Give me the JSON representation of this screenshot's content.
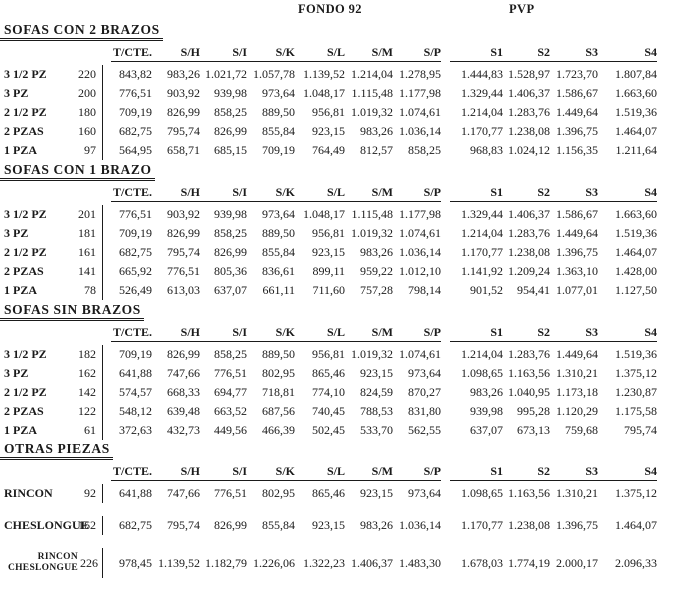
{
  "header": {
    "fondo_label": "FONDO 92",
    "pvp_label": "PVP"
  },
  "columns": [
    "T/CTE.",
    "S/H",
    "S/I",
    "S/K",
    "S/L",
    "S/M",
    "S/P",
    "S1",
    "S2",
    "S3",
    "S4"
  ],
  "sections": [
    {
      "title": "SOFAS CON 2 BRAZOS",
      "rows": [
        {
          "label": "3 1/2 PZ",
          "qty": "220",
          "values": [
            "843,82",
            "983,26",
            "1.021,72",
            "1.057,78",
            "1.139,52",
            "1.214,04",
            "1.278,95",
            "1.444,83",
            "1.528,97",
            "1.723,70",
            "1.807,84"
          ]
        },
        {
          "label": "3 PZ",
          "qty": "200",
          "values": [
            "776,51",
            "903,92",
            "939,98",
            "973,64",
            "1.048,17",
            "1.115,48",
            "1.177,98",
            "1.329,44",
            "1.406,37",
            "1.586,67",
            "1.663,60"
          ]
        },
        {
          "label": "2 1/2 PZ",
          "qty": "180",
          "values": [
            "709,19",
            "826,99",
            "858,25",
            "889,50",
            "956,81",
            "1.019,32",
            "1.074,61",
            "1.214,04",
            "1.283,76",
            "1.449,64",
            "1.519,36"
          ]
        },
        {
          "label": "2 PZAS",
          "qty": "160",
          "values": [
            "682,75",
            "795,74",
            "826,99",
            "855,84",
            "923,15",
            "983,26",
            "1.036,14",
            "1.170,77",
            "1.238,08",
            "1.396,75",
            "1.464,07"
          ]
        },
        {
          "label": "1 PZA",
          "qty": "97",
          "values": [
            "564,95",
            "658,71",
            "685,15",
            "709,19",
            "764,49",
            "812,57",
            "858,25",
            "968,83",
            "1.024,12",
            "1.156,35",
            "1.211,64"
          ]
        }
      ]
    },
    {
      "title": "SOFAS CON 1 BRAZO",
      "rows": [
        {
          "label": "3 1/2 PZ",
          "qty": "201",
          "values": [
            "776,51",
            "903,92",
            "939,98",
            "973,64",
            "1.048,17",
            "1.115,48",
            "1.177,98",
            "1.329,44",
            "1.406,37",
            "1.586,67",
            "1.663,60"
          ]
        },
        {
          "label": "3 PZ",
          "qty": "181",
          "values": [
            "709,19",
            "826,99",
            "858,25",
            "889,50",
            "956,81",
            "1.019,32",
            "1.074,61",
            "1.214,04",
            "1.283,76",
            "1.449,64",
            "1.519,36"
          ]
        },
        {
          "label": "2 1/2 PZ",
          "qty": "161",
          "values": [
            "682,75",
            "795,74",
            "826,99",
            "855,84",
            "923,15",
            "983,26",
            "1.036,14",
            "1.170,77",
            "1.238,08",
            "1.396,75",
            "1.464,07"
          ]
        },
        {
          "label": "2 PZAS",
          "qty": "141",
          "values": [
            "665,92",
            "776,51",
            "805,36",
            "836,61",
            "899,11",
            "959,22",
            "1.012,10",
            "1.141,92",
            "1.209,24",
            "1.363,10",
            "1.428,00"
          ]
        },
        {
          "label": "1 PZA",
          "qty": "78",
          "values": [
            "526,49",
            "613,03",
            "637,07",
            "661,11",
            "711,60",
            "757,28",
            "798,14",
            "901,52",
            "954,41",
            "1.077,01",
            "1.127,50"
          ]
        }
      ]
    },
    {
      "title": "SOFAS SIN BRAZOS",
      "rows": [
        {
          "label": "3 1/2 PZ",
          "qty": "182",
          "values": [
            "709,19",
            "826,99",
            "858,25",
            "889,50",
            "956,81",
            "1.019,32",
            "1.074,61",
            "1.214,04",
            "1.283,76",
            "1.449,64",
            "1.519,36"
          ]
        },
        {
          "label": "3 PZ",
          "qty": "162",
          "values": [
            "641,88",
            "747,66",
            "776,51",
            "802,95",
            "865,46",
            "923,15",
            "973,64",
            "1.098,65",
            "1.163,56",
            "1.310,21",
            "1.375,12"
          ]
        },
        {
          "label": "2 1/2 PZ",
          "qty": "142",
          "values": [
            "574,57",
            "668,33",
            "694,77",
            "718,81",
            "774,10",
            "824,59",
            "870,27",
            "983,26",
            "1.040,95",
            "1.173,18",
            "1.230,87"
          ]
        },
        {
          "label": "2 PZAS",
          "qty": "122",
          "values": [
            "548,12",
            "639,48",
            "663,52",
            "687,56",
            "740,45",
            "788,53",
            "831,80",
            "939,98",
            "995,28",
            "1.120,29",
            "1.175,58"
          ]
        },
        {
          "label": "1 PZA",
          "qty": "61",
          "values": [
            "372,63",
            "432,73",
            "449,56",
            "466,39",
            "502,45",
            "533,70",
            "562,55",
            "637,07",
            "673,13",
            "759,68",
            "795,74"
          ]
        }
      ]
    },
    {
      "title": "OTRAS PIEZAS",
      "rows": [
        {
          "label": "RINCON",
          "qty": "92",
          "values": [
            "641,88",
            "747,66",
            "776,51",
            "802,95",
            "865,46",
            "923,15",
            "973,64",
            "1.098,65",
            "1.163,56",
            "1.310,21",
            "1.375,12"
          ]
        },
        {
          "label": "CHESLONGUE",
          "qty": "162",
          "values": [
            "682,75",
            "795,74",
            "826,99",
            "855,84",
            "923,15",
            "983,26",
            "1.036,14",
            "1.170,77",
            "1.238,08",
            "1.396,75",
            "1.464,07"
          ]
        },
        {
          "label_lines": [
            "RINCON",
            "CHESLONGUE"
          ],
          "qty": "226",
          "values": [
            "978,45",
            "1.139,52",
            "1.182,79",
            "1.226,06",
            "1.322,23",
            "1.406,37",
            "1.483,30",
            "1.678,03",
            "1.774,19",
            "2.000,17",
            "2.096,33"
          ]
        }
      ]
    }
  ]
}
